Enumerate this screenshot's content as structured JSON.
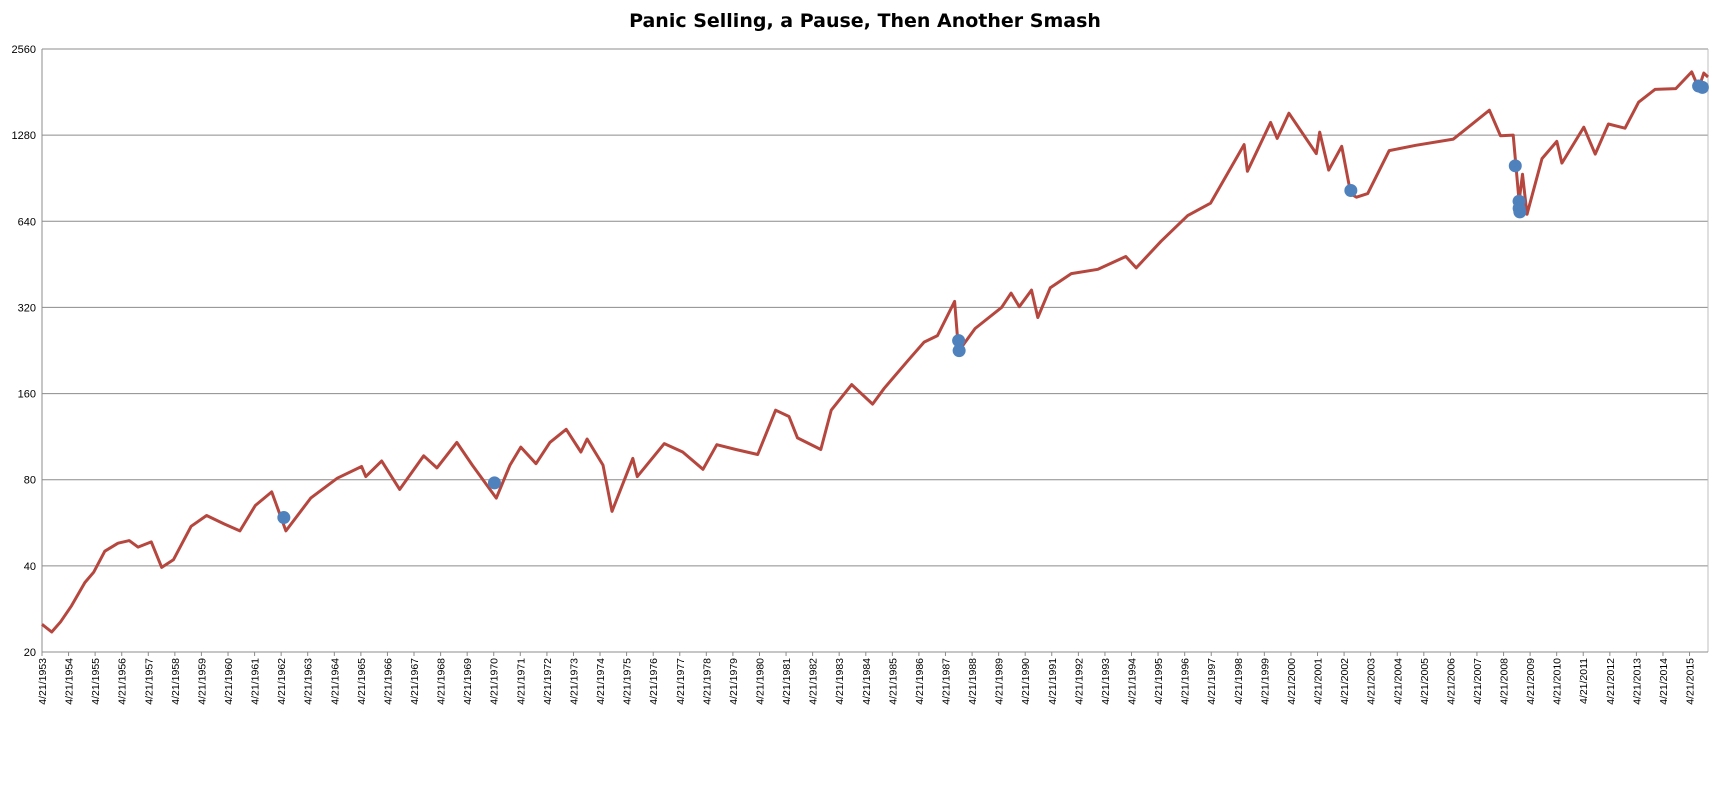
{
  "chart_data": {
    "type": "line",
    "title": "Panic Selling, a Pause, Then Another Smash",
    "xlabel": "",
    "ylabel": "",
    "y_scale": "log2",
    "ylim": [
      20,
      2560
    ],
    "y_ticks": [
      20,
      40,
      80,
      160,
      320,
      640,
      1280,
      2560
    ],
    "x_range": [
      "1953-04-21",
      "2015-12-31"
    ],
    "x_tick_labels": [
      "4/21/1953",
      "4/21/1954",
      "4/21/1955",
      "4/21/1956",
      "4/21/1957",
      "4/21/1958",
      "4/21/1959",
      "4/21/1960",
      "4/21/1961",
      "4/21/1962",
      "4/21/1963",
      "4/21/1964",
      "4/21/1965",
      "4/21/1966",
      "4/21/1967",
      "4/21/1968",
      "4/21/1969",
      "4/21/1970",
      "4/21/1971",
      "4/21/1972",
      "4/21/1973",
      "4/21/1974",
      "4/21/1975",
      "4/21/1976",
      "4/21/1977",
      "4/21/1978",
      "4/21/1979",
      "4/21/1980",
      "4/21/1981",
      "4/21/1982",
      "4/21/1983",
      "4/21/1984",
      "4/21/1985",
      "4/21/1986",
      "4/21/1987",
      "4/21/1988",
      "4/21/1989",
      "4/21/1990",
      "4/21/1991",
      "4/21/1992",
      "4/21/1993",
      "4/21/1994",
      "4/21/1995",
      "4/21/1996",
      "4/21/1997",
      "4/21/1998",
      "4/21/1999",
      "4/21/2000",
      "4/21/2001",
      "4/21/2002",
      "4/21/2003",
      "4/21/2004",
      "4/21/2005",
      "4/21/2006",
      "4/21/2007",
      "4/21/2008",
      "4/21/2009",
      "4/21/2010",
      "4/21/2011",
      "4/21/2012",
      "4/21/2013",
      "4/21/2014",
      "4/21/2015"
    ],
    "grid": true,
    "legend": "none",
    "series": [
      {
        "color": "#b5473f",
        "points": [
          [
            "1953-04-21",
            25.0
          ],
          [
            "1953-09-01",
            23.5
          ],
          [
            "1954-01-01",
            25.5
          ],
          [
            "1954-06-01",
            29.0
          ],
          [
            "1954-12-01",
            35.0
          ],
          [
            "1955-04-01",
            38.0
          ],
          [
            "1955-09-01",
            45.0
          ],
          [
            "1956-03-01",
            48.0
          ],
          [
            "1956-08-01",
            49.0
          ],
          [
            "1956-12-01",
            46.5
          ],
          [
            "1957-06-01",
            48.5
          ],
          [
            "1957-10-22",
            39.5
          ],
          [
            "1958-04-01",
            42.0
          ],
          [
            "1958-12-01",
            55.0
          ],
          [
            "1959-07-01",
            60.0
          ],
          [
            "1960-03-01",
            56.0
          ],
          [
            "1960-10-01",
            53.0
          ],
          [
            "1961-05-01",
            65.0
          ],
          [
            "1961-12-12",
            72.5
          ],
          [
            "1962-06-26",
            53.0
          ],
          [
            "1963-06-01",
            69.0
          ],
          [
            "1964-06-01",
            81.0
          ],
          [
            "1965-05-01",
            89.0
          ],
          [
            "1965-06-28",
            82.0
          ],
          [
            "1966-02-01",
            93.0
          ],
          [
            "1966-10-07",
            74.0
          ],
          [
            "1967-09-01",
            97.0
          ],
          [
            "1968-03-01",
            88.0
          ],
          [
            "1968-11-29",
            108.0
          ],
          [
            "1969-07-01",
            90.0
          ],
          [
            "1970-05-26",
            69.0
          ],
          [
            "1970-12-01",
            90.0
          ],
          [
            "1971-04-28",
            104.0
          ],
          [
            "1971-11-23",
            91.0
          ],
          [
            "1972-06-01",
            108.0
          ],
          [
            "1973-01-11",
            120.0
          ],
          [
            "1973-08-01",
            100.0
          ],
          [
            "1973-10-26",
            111.0
          ],
          [
            "1974-06-01",
            90.0
          ],
          [
            "1974-10-03",
            62.0
          ],
          [
            "1975-07-15",
            95.0
          ],
          [
            "1975-09-16",
            82.0
          ],
          [
            "1976-09-21",
            107.0
          ],
          [
            "1977-06-01",
            100.0
          ],
          [
            "1978-03-06",
            87.0
          ],
          [
            "1978-09-12",
            106.0
          ],
          [
            "1979-06-01",
            102.0
          ],
          [
            "1980-03-27",
            98.0
          ],
          [
            "1980-11-28",
            140.0
          ],
          [
            "1981-06-01",
            133.0
          ],
          [
            "1981-09-25",
            112.0
          ],
          [
            "1982-08-12",
            102.0
          ],
          [
            "1983-01-01",
            140.0
          ],
          [
            "1983-10-10",
            172.0
          ],
          [
            "1984-07-24",
            147.0
          ],
          [
            "1985-01-01",
            167.0
          ],
          [
            "1985-12-01",
            210.0
          ],
          [
            "1986-07-01",
            242.0
          ],
          [
            "1987-01-01",
            255.0
          ],
          [
            "1987-08-25",
            336.0
          ],
          [
            "1987-10-19",
            225.0
          ],
          [
            "1988-06-01",
            270.0
          ],
          [
            "1989-06-01",
            320.0
          ],
          [
            "1989-10-09",
            359.0
          ],
          [
            "1990-01-30",
            322.0
          ],
          [
            "1990-07-16",
            368.0
          ],
          [
            "1990-10-11",
            295.0
          ],
          [
            "1991-04-01",
            375.0
          ],
          [
            "1992-01-15",
            420.0
          ],
          [
            "1993-01-15",
            435.0
          ],
          [
            "1994-02-02",
            482.0
          ],
          [
            "1994-06-24",
            440.0
          ],
          [
            "1995-06-01",
            545.0
          ],
          [
            "1996-06-01",
            670.0
          ],
          [
            "1997-04-11",
            740.0
          ],
          [
            "1998-07-17",
            1186.0
          ],
          [
            "1998-08-31",
            957.0
          ],
          [
            "1999-07-16",
            1418.0
          ],
          [
            "1999-10-15",
            1247.0
          ],
          [
            "2000-03-24",
            1527.0
          ],
          [
            "2001-04-04",
            1103.0
          ],
          [
            "2001-05-21",
            1312.0
          ],
          [
            "2001-09-21",
            966.0
          ],
          [
            "2002-03-19",
            1170.0
          ],
          [
            "2002-07-23",
            797.0
          ],
          [
            "2002-10-09",
            777.0
          ],
          [
            "2003-03-11",
            800.0
          ],
          [
            "2004-01-01",
            1130.0
          ],
          [
            "2005-01-01",
            1180.0
          ],
          [
            "2006-06-01",
            1240.0
          ],
          [
            "2007-10-09",
            1565.0
          ],
          [
            "2008-03-10",
            1273.0
          ],
          [
            "2008-09-01",
            1280.0
          ],
          [
            "2008-11-20",
            752.0
          ],
          [
            "2009-01-06",
            935.0
          ],
          [
            "2009-03-09",
            677.0
          ],
          [
            "2009-10-01",
            1060.0
          ],
          [
            "2010-04-23",
            1217.0
          ],
          [
            "2010-07-02",
            1022.0
          ],
          [
            "2011-04-29",
            1364.0
          ],
          [
            "2011-10-03",
            1099.0
          ],
          [
            "2012-04-01",
            1400.0
          ],
          [
            "2012-11-15",
            1353.0
          ],
          [
            "2013-05-21",
            1669.0
          ],
          [
            "2014-01-01",
            1850.0
          ],
          [
            "2014-10-15",
            1862.0
          ],
          [
            "2015-05-21",
            2130.0
          ],
          [
            "2015-08-25",
            1867.0
          ],
          [
            "2015-11-03",
            2109.0
          ],
          [
            "2015-12-31",
            2044.0
          ]
        ]
      }
    ],
    "markers": {
      "color": "#4f81bd",
      "points": [
        [
          "1962-05-28",
          59.0
        ],
        [
          "1970-05-01",
          78.0
        ],
        [
          "1987-10-19",
          245.0
        ],
        [
          "1987-10-26",
          226.0
        ],
        [
          "2002-07-23",
          820.0
        ],
        [
          "2008-09-29",
          1000.0
        ],
        [
          "2008-11-20",
          752.0
        ],
        [
          "2008-12-01",
          690.0
        ],
        [
          "2008-11-21",
          710.0
        ],
        [
          "2015-08-24",
          1900.0
        ],
        [
          "2015-10-15",
          1880.0
        ]
      ]
    }
  }
}
